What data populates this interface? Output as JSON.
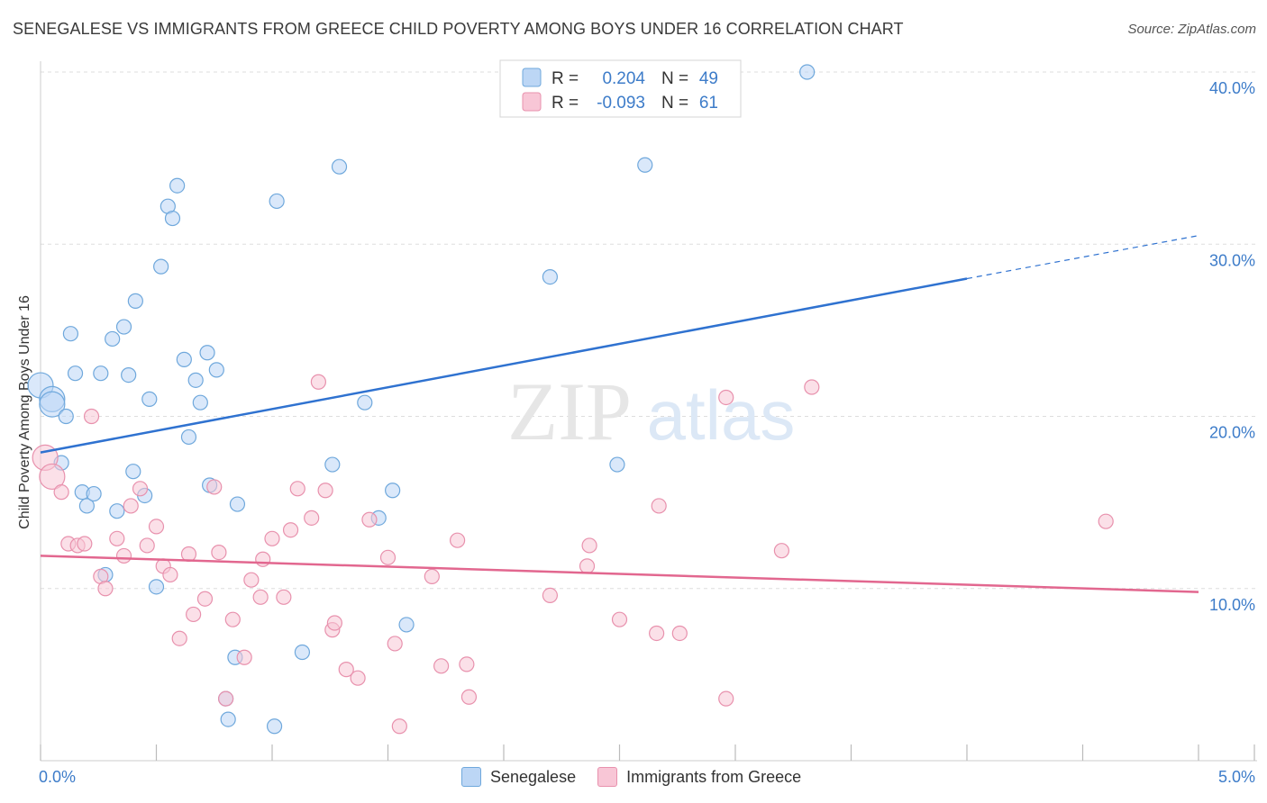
{
  "header": {
    "title": "SENEGALESE VS IMMIGRANTS FROM GREECE CHILD POVERTY AMONG BOYS UNDER 16 CORRELATION CHART",
    "source": "Source: ZipAtlas.com"
  },
  "watermark": {
    "zip": "ZIP",
    "atlas": "atlas"
  },
  "colors": {
    "blue": "#6fa8dc",
    "blue_fill": "#bcd6f5",
    "blue_line": "#2f72d0",
    "pink": "#e891ad",
    "pink_fill": "#f8c6d6",
    "pink_line": "#e2678f",
    "axis_label": "#3d7cc9",
    "grid": "#dddddd"
  },
  "legend": {
    "rows": [
      {
        "r_label": "R =",
        "r_value": "0.204",
        "n_label": "N =",
        "n_value": "49"
      },
      {
        "r_label": "R =",
        "r_value": "-0.093",
        "n_label": "N =",
        "n_value": "61"
      }
    ]
  },
  "chart_data": {
    "type": "scatter",
    "title": "SENEGALESE VS IMMIGRANTS FROM GREECE CHILD POVERTY AMONG BOYS UNDER 16 CORRELATION CHART",
    "xlabel": "",
    "ylabel": "Child Poverty Among Boys Under 16",
    "xlim": [
      0,
      5
    ],
    "ylim": [
      0,
      40
    ],
    "x_tick_labels": [
      "0.0%",
      "5.0%"
    ],
    "y_ticks": [
      10,
      20,
      30,
      40
    ],
    "y_tick_labels": [
      "10.0%",
      "20.0%",
      "30.0%",
      "40.0%"
    ],
    "legend_position": "top-center",
    "series": [
      {
        "name": "Senegalese",
        "r": 0.204,
        "n": 49,
        "trend": {
          "x0": 0.0,
          "y0": 17.9,
          "x1": 4.0,
          "y1": 28.0,
          "dash_to_x": 5.0,
          "dash_to_y": 30.5
        },
        "points": [
          [
            0.0,
            21.8
          ],
          [
            0.05,
            21.0
          ],
          [
            0.05,
            20.7
          ],
          [
            0.09,
            17.3
          ],
          [
            0.11,
            20.0
          ],
          [
            0.13,
            24.8
          ],
          [
            0.15,
            22.5
          ],
          [
            0.18,
            15.6
          ],
          [
            0.2,
            14.8
          ],
          [
            0.23,
            15.5
          ],
          [
            0.26,
            22.5
          ],
          [
            0.28,
            10.8
          ],
          [
            0.31,
            24.5
          ],
          [
            0.33,
            14.5
          ],
          [
            0.36,
            25.2
          ],
          [
            0.38,
            22.4
          ],
          [
            0.4,
            16.8
          ],
          [
            0.41,
            26.7
          ],
          [
            0.45,
            15.4
          ],
          [
            0.47,
            21.0
          ],
          [
            0.5,
            10.1
          ],
          [
            0.52,
            28.7
          ],
          [
            0.55,
            32.2
          ],
          [
            0.57,
            31.5
          ],
          [
            0.59,
            33.4
          ],
          [
            0.62,
            23.3
          ],
          [
            0.64,
            18.8
          ],
          [
            0.67,
            22.1
          ],
          [
            0.69,
            20.8
          ],
          [
            0.72,
            23.7
          ],
          [
            0.73,
            16.0
          ],
          [
            0.76,
            22.7
          ],
          [
            0.8,
            3.6
          ],
          [
            0.81,
            2.4
          ],
          [
            0.84,
            6.0
          ],
          [
            0.85,
            14.9
          ],
          [
            1.01,
            2.0
          ],
          [
            1.02,
            32.5
          ],
          [
            1.13,
            6.3
          ],
          [
            1.26,
            17.2
          ],
          [
            1.29,
            34.5
          ],
          [
            1.4,
            20.8
          ],
          [
            1.46,
            14.1
          ],
          [
            1.52,
            15.7
          ],
          [
            1.58,
            7.9
          ],
          [
            2.2,
            28.1
          ],
          [
            2.49,
            17.2
          ],
          [
            2.61,
            34.6
          ],
          [
            3.31,
            40.0
          ]
        ]
      },
      {
        "name": "Immigrants from Greece",
        "r": -0.093,
        "n": 61,
        "trend": {
          "x0": 0.0,
          "y0": 11.9,
          "x1": 5.0,
          "y1": 9.8
        },
        "points": [
          [
            0.02,
            17.6
          ],
          [
            0.05,
            16.5
          ],
          [
            0.09,
            15.6
          ],
          [
            0.12,
            12.6
          ],
          [
            0.16,
            12.5
          ],
          [
            0.19,
            12.6
          ],
          [
            0.22,
            20.0
          ],
          [
            0.26,
            10.7
          ],
          [
            0.28,
            10.0
          ],
          [
            0.33,
            12.9
          ],
          [
            0.36,
            11.9
          ],
          [
            0.39,
            14.8
          ],
          [
            0.43,
            15.8
          ],
          [
            0.46,
            12.5
          ],
          [
            0.5,
            13.6
          ],
          [
            0.53,
            11.3
          ],
          [
            0.56,
            10.8
          ],
          [
            0.6,
            7.1
          ],
          [
            0.64,
            12.0
          ],
          [
            0.66,
            8.5
          ],
          [
            0.71,
            9.4
          ],
          [
            0.75,
            15.9
          ],
          [
            0.77,
            12.1
          ],
          [
            0.8,
            3.6
          ],
          [
            0.83,
            8.2
          ],
          [
            0.88,
            6.0
          ],
          [
            0.91,
            10.5
          ],
          [
            0.95,
            9.5
          ],
          [
            0.96,
            11.7
          ],
          [
            1.0,
            12.9
          ],
          [
            1.05,
            9.5
          ],
          [
            1.08,
            13.4
          ],
          [
            1.11,
            15.8
          ],
          [
            1.17,
            14.1
          ],
          [
            1.2,
            22.0
          ],
          [
            1.23,
            15.7
          ],
          [
            1.26,
            7.6
          ],
          [
            1.27,
            8.0
          ],
          [
            1.32,
            5.3
          ],
          [
            1.37,
            4.8
          ],
          [
            1.42,
            14.0
          ],
          [
            1.5,
            11.8
          ],
          [
            1.53,
            6.8
          ],
          [
            1.55,
            2.0
          ],
          [
            1.69,
            10.7
          ],
          [
            1.73,
            5.5
          ],
          [
            1.8,
            12.8
          ],
          [
            1.84,
            5.6
          ],
          [
            1.85,
            3.7
          ],
          [
            2.2,
            9.6
          ],
          [
            2.36,
            11.3
          ],
          [
            2.37,
            12.5
          ],
          [
            2.5,
            8.2
          ],
          [
            2.66,
            7.4
          ],
          [
            2.67,
            14.8
          ],
          [
            2.76,
            7.4
          ],
          [
            2.96,
            3.6
          ],
          [
            2.96,
            21.1
          ],
          [
            3.2,
            12.2
          ],
          [
            3.33,
            21.7
          ],
          [
            4.6,
            13.9
          ]
        ]
      }
    ]
  }
}
